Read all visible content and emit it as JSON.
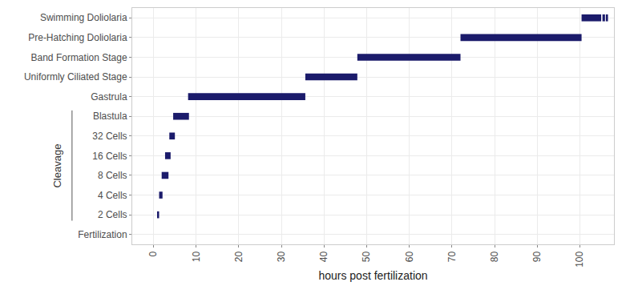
{
  "chart_data": {
    "type": "bar",
    "orientation": "horizontal",
    "x_label": "hours post fertilization",
    "categories": [
      "Fertilization",
      "2 Cells",
      "4 Cells",
      "8 Cells",
      "16 Cells",
      "32 Cells",
      "Blastula",
      "Gastrula",
      "Uniformly Ciliated Stage",
      "Band Formation Stage",
      "Pre-Hatching Doliolaria",
      "Swimming Doliolaria"
    ],
    "ranges": [
      [],
      [
        [
          1.0,
          1.3
        ]
      ],
      [
        [
          1.3,
          2.1
        ]
      ],
      [
        [
          1.9,
          3.5
        ]
      ],
      [
        [
          2.7,
          4.0
        ]
      ],
      [
        [
          3.7,
          5.0
        ]
      ],
      [
        [
          4.6,
          8.3
        ]
      ],
      [
        [
          8.1,
          35.6
        ]
      ],
      [
        [
          35.6,
          47.8
        ]
      ],
      [
        [
          47.8,
          72.0
        ]
      ],
      [
        [
          72.0,
          100.4
        ]
      ],
      [
        [
          100.4,
          105.0
        ],
        [
          105.3,
          105.9
        ],
        [
          106.1,
          106.6
        ]
      ]
    ],
    "color": "#1b1b6b",
    "xlim": [
      -5,
      108
    ],
    "xticks": [
      0,
      10,
      20,
      30,
      40,
      50,
      60,
      70,
      80,
      90,
      100
    ],
    "grid": true,
    "annotations": [
      {
        "text": "Cleavage",
        "from": "2 Cells",
        "to": "Blastula"
      }
    ]
  }
}
